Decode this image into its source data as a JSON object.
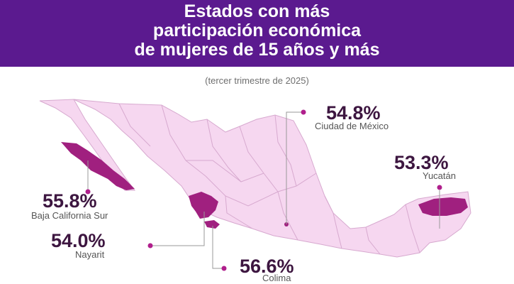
{
  "header": {
    "title_line1": "Estados con más",
    "title_line2": "participación económica",
    "title_line3": "de mujeres de 15 años y más"
  },
  "subtitle": "(tercer trimestre de 2025)",
  "colors": {
    "banner": "#5b1a8f",
    "map_fill": "#f6d7f0",
    "map_stroke": "#d7a9cf",
    "highlight": "#a0207f",
    "connector_dot": "#b01f8c",
    "value_text": "#3d1640"
  },
  "states": [
    {
      "name": "Ciudad de México",
      "value": "54.8%"
    },
    {
      "name": "Yucatán",
      "value": "53.3%"
    },
    {
      "name": "Baja California Sur",
      "value": "55.8%"
    },
    {
      "name": "Nayarit",
      "value": "54.0%"
    },
    {
      "name": "Colima",
      "value": "56.6%"
    }
  ]
}
